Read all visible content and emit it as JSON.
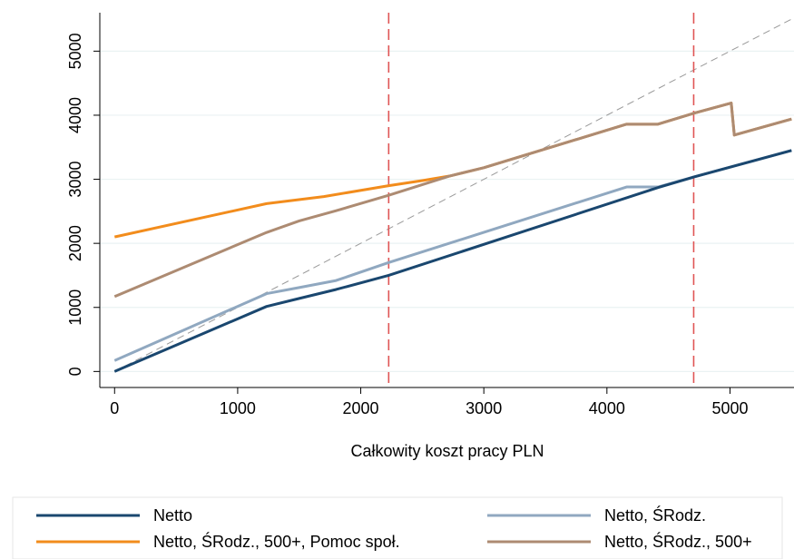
{
  "chart_data": {
    "type": "line",
    "xlabel": "Całkowity koszt pracy PLN",
    "ylabel": "",
    "xlim": [
      -120,
      5520
    ],
    "ylim": [
      -250,
      5600
    ],
    "x_ticks": [
      0,
      1000,
      2000,
      3000,
      4000,
      5000
    ],
    "y_ticks": [
      0,
      1000,
      2000,
      3000,
      4000,
      5000
    ],
    "grid": "horizontal",
    "legend_position": "bottom",
    "series": [
      {
        "name": "Netto",
        "color": "#1a476f",
        "points": [
          [
            0,
            0
          ],
          [
            1235,
            1015
          ],
          [
            1500,
            1140
          ],
          [
            1800,
            1280
          ],
          [
            2227,
            1500
          ],
          [
            4415,
            2870
          ],
          [
            4705,
            3035
          ],
          [
            5500,
            3450
          ]
        ]
      },
      {
        "name": "Netto, ŚRodz.",
        "color": "#90a8c0",
        "points": [
          [
            0,
            170
          ],
          [
            1235,
            1215
          ],
          [
            1500,
            1310
          ],
          [
            1800,
            1420
          ],
          [
            2227,
            1700
          ],
          [
            4160,
            2880
          ],
          [
            4415,
            2880
          ],
          [
            4705,
            3035
          ],
          [
            5500,
            3450
          ]
        ]
      },
      {
        "name": "Netto, ŚRodz., 500+, Pomoc społ.",
        "color": "#f28c1c",
        "points": [
          [
            0,
            2100
          ],
          [
            1235,
            2620
          ],
          [
            1700,
            2730
          ],
          [
            2227,
            2900
          ],
          [
            2500,
            2980
          ],
          [
            2720,
            3050
          ],
          [
            3000,
            3180
          ],
          [
            4160,
            3860
          ],
          [
            4415,
            3860
          ],
          [
            4705,
            4030
          ],
          [
            5010,
            4190
          ],
          [
            5035,
            3690
          ],
          [
            5500,
            3940
          ]
        ]
      },
      {
        "name": "Netto, ŚRodz., 500+",
        "color": "#ad8b72",
        "points": [
          [
            0,
            1170
          ],
          [
            1235,
            2170
          ],
          [
            1500,
            2350
          ],
          [
            1800,
            2510
          ],
          [
            2227,
            2750
          ],
          [
            2720,
            3050
          ],
          [
            3000,
            3180
          ],
          [
            4160,
            3860
          ],
          [
            4415,
            3860
          ],
          [
            4705,
            4030
          ],
          [
            5010,
            4190
          ],
          [
            5035,
            3690
          ],
          [
            5500,
            3940
          ]
        ]
      }
    ],
    "reference_lines": {
      "diagonal": {
        "from": [
          0,
          0
        ],
        "to": [
          5500,
          5500
        ],
        "color": "#999999"
      },
      "vertical": [
        2227,
        4705
      ],
      "vertical_color": "#e05555"
    }
  }
}
